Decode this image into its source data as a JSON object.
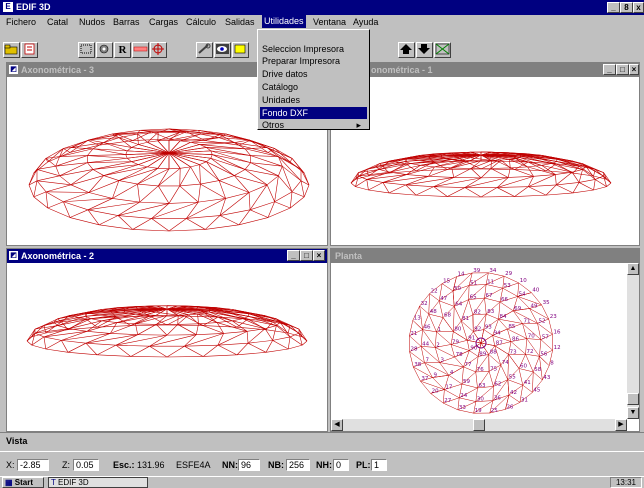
{
  "window": {
    "title": "EDIF 3D",
    "min": "_",
    "max": "8",
    "close": "x"
  },
  "menubar": [
    "Fichero",
    "Catal",
    "Nudos",
    "Barras",
    "Cargas",
    "Cálculo",
    "Salidas",
    "Utilidades",
    "Ventana",
    "Ayuda"
  ],
  "active_menu": "Utilidades",
  "dropdown": {
    "items": [
      "Seleccion Impresora",
      "Preparar Impresora",
      "Drive datos",
      "Catálogo",
      "Unidades",
      "Fondo DXF",
      "Otros"
    ],
    "selected": "Fondo DXF",
    "submenu_arrow": "▸"
  },
  "toolbar": {
    "r_label": "R"
  },
  "windows": {
    "axo3": {
      "title": "Axonométrica - 3"
    },
    "axo1": {
      "title": "Axonométrica - 1",
      "visible_title": "onométrica - 1"
    },
    "axo2": {
      "title": "Axonométrica - 2"
    },
    "planta": {
      "title": "Planta"
    }
  },
  "window_controls": {
    "min": "_",
    "max": "□",
    "close": "×"
  },
  "planta_node_labels": [
    "31",
    "26",
    "25",
    "19",
    "33",
    "27",
    "20",
    "37",
    "38",
    "28",
    "21",
    "13",
    "32",
    "22",
    "15",
    "14",
    "39",
    "34",
    "29",
    "10",
    "40",
    "35",
    "23",
    "16",
    "12",
    "8",
    "43",
    "45",
    "41",
    "42",
    "36",
    "30",
    "24",
    "17",
    "9",
    "7",
    "44",
    "46",
    "48",
    "47",
    "50",
    "51",
    "11",
    "53",
    "54",
    "49",
    "52",
    "57",
    "56",
    "58",
    "60",
    "55",
    "62",
    "63",
    "59",
    "4",
    "3",
    "2",
    "1",
    "68",
    "64",
    "65",
    "67",
    "66",
    "69",
    "71",
    "70",
    "72",
    "73",
    "74",
    "75",
    "76",
    "77",
    "78",
    "79",
    "80",
    "81",
    "82",
    "83",
    "84",
    "85",
    "86",
    "87",
    "88",
    "89",
    "90",
    "91",
    "92",
    "93",
    "94",
    "95",
    "96",
    "97"
  ],
  "status": {
    "vista_label": "Vista",
    "x_label": "X:",
    "x_value": "-2.85",
    "z_label": "Z:",
    "z_value": "0.05",
    "esc_label": "Esc.:",
    "esc_value": "131.96",
    "code": "ESFE4A",
    "nn_label": "NN:",
    "nn_value": "96",
    "nb_label": "NB:",
    "nb_value": "256",
    "nh_label": "NH:",
    "nh_value": "0",
    "pl_label": "PL:",
    "pl_value": "1"
  },
  "taskbar": {
    "start": "Start",
    "task": "EDIF 3D",
    "clock": "13:31"
  },
  "colors": {
    "titlebar": "#000080",
    "mesh": "#c00000",
    "nodes": "#800080",
    "desktop": "#c0c0c0"
  }
}
